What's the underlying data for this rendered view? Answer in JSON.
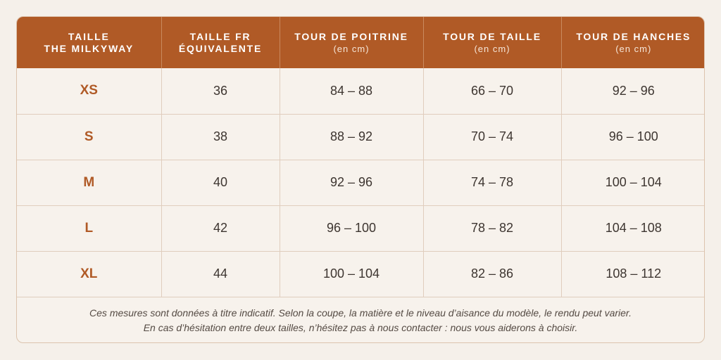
{
  "header": {
    "col1_line1": "TAILLE",
    "col1_line2": "THE MILKYWAY",
    "col2_line1": "TAILLE FR",
    "col2_line2": "ÉQUIVALENTE",
    "col3_title": "TOUR DE POITRINE",
    "col3_unit": "(en cm)",
    "col4_title": "TOUR DE TAILLE",
    "col4_unit": "(en cm)",
    "col5_title": "TOUR DE HANCHES",
    "col5_unit": "(en cm)"
  },
  "rows": [
    {
      "size": "XS",
      "fr": "36",
      "poitrine": "84 – 88",
      "taille": "66 – 70",
      "hanches": "92 – 96"
    },
    {
      "size": "S",
      "fr": "38",
      "poitrine": "88 – 92",
      "taille": "70 – 74",
      "hanches": "96 – 100"
    },
    {
      "size": "M",
      "fr": "40",
      "poitrine": "92 – 96",
      "taille": "74 – 78",
      "hanches": "100 – 104"
    },
    {
      "size": "L",
      "fr": "42",
      "poitrine": "96 – 100",
      "taille": "78 – 82",
      "hanches": "104 – 108"
    },
    {
      "size": "XL",
      "fr": "44",
      "poitrine": "100 – 104",
      "taille": "82 – 86",
      "hanches": "108 – 112"
    }
  ],
  "note": {
    "line1": "Ces mesures sont données à titre indicatif. Selon la coupe, la matière et le niveau d’aisance du modèle, le rendu peut varier.",
    "line2": "En cas d’hésitation entre deux tailles, n’hésitez pas à nous contacter : nous vous aiderons à choisir."
  },
  "colors": {
    "accent": "#b05a26",
    "background": "#f5f0ea",
    "text": "#3d3530"
  }
}
